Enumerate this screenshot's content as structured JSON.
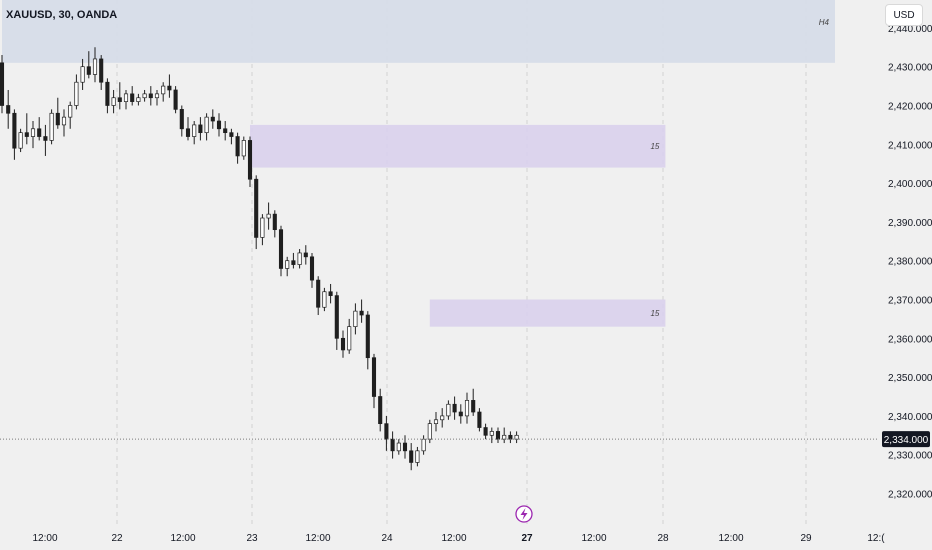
{
  "header": {
    "symbol_title": "XAUUSD, 30, OANDA",
    "currency_label": "USD"
  },
  "colors": {
    "background": "#f0f0f0",
    "up_candle": "#ffffff",
    "down_candle": "#1f1f1f",
    "wick": "#1f1f1f",
    "h4_zone": "#d6dce8",
    "m15_zone": "#d9d0ec",
    "price_label_bg": "#131722",
    "event_icon": "#9c27b0"
  },
  "icons": {
    "event_marker": "lightning-bolt-icon"
  },
  "chart_data": {
    "type": "candlestick",
    "title": "XAUUSD, 30, OANDA",
    "x_tick_labels": [
      "12:00",
      "22",
      "12:00",
      "23",
      "12:00",
      "24",
      "12:00",
      "27",
      "12:00",
      "28",
      "12:00",
      "29",
      "12:("
    ],
    "y_tick_labels": [
      "2,320.000",
      "2,330.000",
      "2,340.000",
      "2,350.000",
      "2,360.000",
      "2,370.000",
      "2,380.000",
      "2,390.000",
      "2,400.000",
      "2,410.000",
      "2,420.000",
      "2,430.000",
      "2,440.000"
    ],
    "ylim": [
      2317,
      2441
    ],
    "grid": true,
    "current_price": {
      "label": "2,334.000",
      "value": 2334
    },
    "zones": [
      {
        "label": "H4",
        "x_start": 0,
        "x_end": 167,
        "y_top": 2448,
        "y_bottom": 2431
      },
      {
        "label": "15",
        "x_start": 40,
        "x_end": 107,
        "y_top": 2415,
        "y_bottom": 2404
      },
      {
        "label": "15",
        "x_start": 69,
        "x_end": 107,
        "y_top": 2370,
        "y_bottom": 2363
      }
    ],
    "candles_ohlc": [
      [
        2431,
        2433,
        2418,
        2420
      ],
      [
        2420,
        2424,
        2414,
        2418
      ],
      [
        2418,
        2419,
        2406,
        2409
      ],
      [
        2409,
        2414,
        2408,
        2413
      ],
      [
        2413,
        2418,
        2410,
        2412
      ],
      [
        2412,
        2416,
        2409,
        2414
      ],
      [
        2414,
        2417,
        2411,
        2412
      ],
      [
        2412,
        2415,
        2407,
        2411
      ],
      [
        2411,
        2419,
        2410,
        2418
      ],
      [
        2418,
        2422,
        2414,
        2415
      ],
      [
        2415,
        2419,
        2412,
        2417
      ],
      [
        2417,
        2421,
        2414,
        2420
      ],
      [
        2420,
        2428,
        2419,
        2426
      ],
      [
        2426,
        2432,
        2424,
        2430
      ],
      [
        2430,
        2434,
        2427,
        2428
      ],
      [
        2428,
        2435,
        2426,
        2432
      ],
      [
        2432,
        2433,
        2424,
        2426
      ],
      [
        2426,
        2427,
        2418,
        2420
      ],
      [
        2420,
        2424,
        2418,
        2422
      ],
      [
        2422,
        2426,
        2419,
        2421
      ],
      [
        2421,
        2424,
        2419,
        2423
      ],
      [
        2423,
        2425,
        2420,
        2421
      ],
      [
        2421,
        2423,
        2420,
        2422
      ],
      [
        2422,
        2424,
        2421,
        2423
      ],
      [
        2423,
        2425,
        2420,
        2422
      ],
      [
        2422,
        2424,
        2420,
        2423
      ],
      [
        2423,
        2426,
        2421,
        2425
      ],
      [
        2425,
        2428,
        2422,
        2424
      ],
      [
        2424,
        2425,
        2418,
        2419
      ],
      [
        2419,
        2420,
        2412,
        2414
      ],
      [
        2414,
        2417,
        2411,
        2412
      ],
      [
        2412,
        2416,
        2410,
        2415
      ],
      [
        2415,
        2417,
        2411,
        2413
      ],
      [
        2413,
        2418,
        2411,
        2417
      ],
      [
        2417,
        2419,
        2414,
        2416
      ],
      [
        2416,
        2418,
        2412,
        2414
      ],
      [
        2414,
        2416,
        2411,
        2413
      ],
      [
        2413,
        2414,
        2410,
        2412
      ],
      [
        2412,
        2413,
        2405,
        2407
      ],
      [
        2407,
        2412,
        2406,
        2411
      ],
      [
        2411,
        2412,
        2399,
        2401
      ],
      [
        2401,
        2402,
        2383,
        2386
      ],
      [
        2386,
        2392,
        2384,
        2391
      ],
      [
        2391,
        2395,
        2388,
        2392
      ],
      [
        2392,
        2393,
        2386,
        2388
      ],
      [
        2388,
        2389,
        2376,
        2378
      ],
      [
        2378,
        2381,
        2376,
        2380
      ],
      [
        2380,
        2382,
        2378,
        2379
      ],
      [
        2379,
        2383,
        2378,
        2382
      ],
      [
        2382,
        2384,
        2379,
        2381
      ],
      [
        2381,
        2382,
        2373,
        2375
      ],
      [
        2375,
        2376,
        2366,
        2368
      ],
      [
        2368,
        2373,
        2367,
        2372
      ],
      [
        2372,
        2374,
        2369,
        2371
      ],
      [
        2371,
        2372,
        2357,
        2360
      ],
      [
        2360,
        2362,
        2355,
        2357
      ],
      [
        2357,
        2365,
        2356,
        2363
      ],
      [
        2363,
        2369,
        2361,
        2367
      ],
      [
        2367,
        2370,
        2364,
        2366
      ],
      [
        2366,
        2367,
        2352,
        2355
      ],
      [
        2355,
        2356,
        2342,
        2345
      ],
      [
        2345,
        2347,
        2336,
        2338
      ],
      [
        2338,
        2340,
        2331,
        2334
      ],
      [
        2334,
        2336,
        2329,
        2331
      ],
      [
        2331,
        2334,
        2330,
        2333
      ],
      [
        2333,
        2335,
        2329,
        2331
      ],
      [
        2331,
        2333,
        2326,
        2328
      ],
      [
        2328,
        2332,
        2327,
        2331
      ],
      [
        2331,
        2335,
        2330,
        2334
      ],
      [
        2334,
        2339,
        2333,
        2338
      ],
      [
        2338,
        2341,
        2336,
        2339
      ],
      [
        2339,
        2342,
        2337,
        2340
      ],
      [
        2340,
        2344,
        2339,
        2343
      ],
      [
        2343,
        2345,
        2339,
        2341
      ],
      [
        2341,
        2343,
        2338,
        2340
      ],
      [
        2340,
        2346,
        2338,
        2344
      ],
      [
        2344,
        2347,
        2340,
        2341
      ],
      [
        2341,
        2342,
        2336,
        2337
      ],
      [
        2337,
        2338,
        2334,
        2335
      ],
      [
        2335,
        2337,
        2333,
        2336
      ],
      [
        2336,
        2337,
        2333,
        2334
      ],
      [
        2334,
        2337,
        2333,
        2335
      ],
      [
        2335,
        2336,
        2333,
        2334
      ],
      [
        2334,
        2336,
        2333,
        2335
      ]
    ]
  }
}
